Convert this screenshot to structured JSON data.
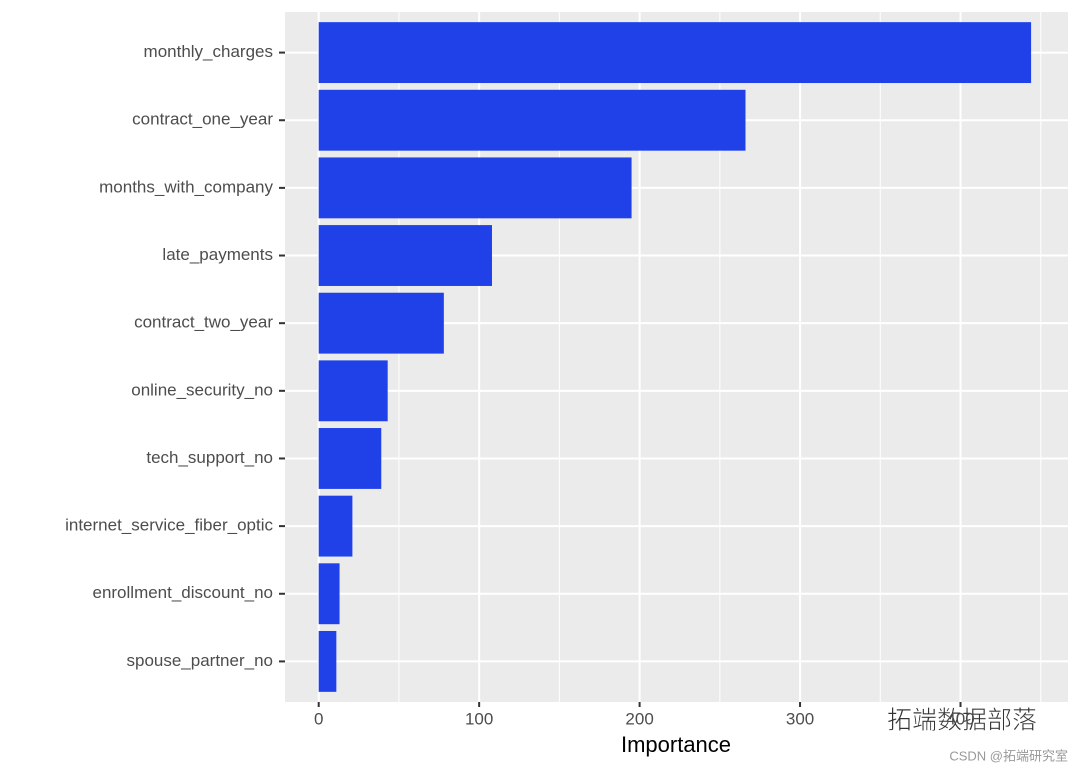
{
  "chart_data": {
    "type": "barh",
    "x_label": "Importance",
    "categories": [
      "monthly_charges",
      "contract_one_year",
      "months_with_company",
      "late_payments",
      "contract_two_year",
      "online_security_no",
      "tech_support_no",
      "internet_service_fiber_optic",
      "enrollment_discount_no",
      "spouse_partner_no"
    ],
    "values": [
      444,
      266,
      195,
      108,
      78,
      43,
      39,
      21,
      13,
      11
    ],
    "color": "#2141e8",
    "xlim": [
      -21,
      467
    ],
    "xticks": [
      0,
      100,
      200,
      300,
      400
    ],
    "x_minor_grid": [
      50,
      150,
      250,
      350,
      450
    ],
    "grid": true,
    "watermark": "拓端数据部落",
    "source": "CSDN @拓端研究室"
  }
}
